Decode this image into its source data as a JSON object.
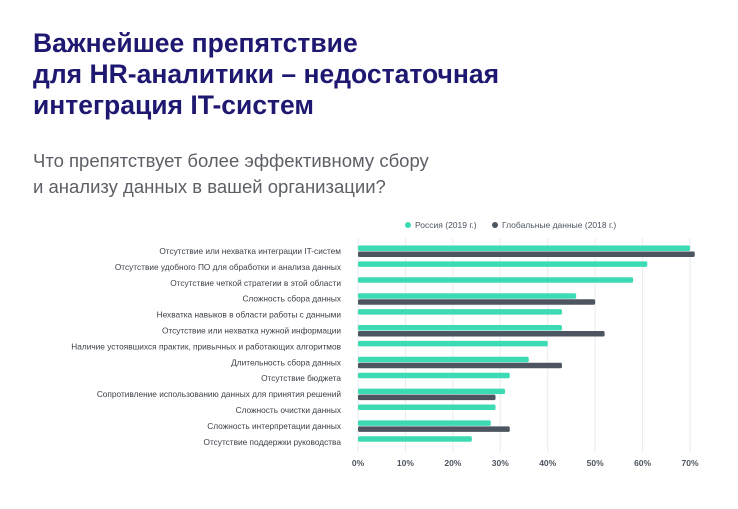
{
  "title_lines": [
    "Важнейшее препятствие",
    "для HR-аналитики – недостаточная",
    "интеграция IT-систем"
  ],
  "subtitle_lines": [
    "Что препятствует более эффективному сбору",
    "и анализу данных в вашей организации?"
  ],
  "colors": {
    "title": "#1f1870",
    "russia": "#3ddbb3",
    "global": "#4d5560",
    "grid": "#e9ebee"
  },
  "chart_data": {
    "type": "bar",
    "orientation": "horizontal",
    "title": "",
    "xlabel": "",
    "ylabel": "",
    "xlim": [
      0,
      70
    ],
    "x_ticks": [
      "0%",
      "10%",
      "20%",
      "30%",
      "40%",
      "50%",
      "60%",
      "70%"
    ],
    "legend_position": "top-right",
    "grid": true,
    "categories": [
      "Отсутствие или нехватка интеграции IT-систем",
      "Отсутствие удобного ПО для обработки и анализа данных",
      "Отсутствие четкой стратегии в этой области",
      "Сложность сбора данных",
      "Нехватка навыков в области работы с данными",
      "Отсутствие или нехватка нужной информации",
      "Наличие устоявшихся практик, привычных и работающих алгоритмов",
      "Длительность сбора данных",
      "Отсутствие бюджета",
      "Сопротивление использованию данных для принятия решений",
      "Сложность очистки данных",
      "Сложность интерпретации данных",
      "Отсутствие поддержки руководства"
    ],
    "series": [
      {
        "name": "Россия (2019 г.)",
        "color": "#3ddbb3",
        "values": [
          70,
          61,
          58,
          46,
          43,
          43,
          40,
          36,
          32,
          31,
          29,
          28,
          24
        ]
      },
      {
        "name": "Глобальные данные (2018 г.)",
        "color": "#4d5560",
        "values": [
          71,
          null,
          null,
          50,
          null,
          52,
          null,
          43,
          null,
          29,
          null,
          32,
          null
        ]
      }
    ]
  }
}
